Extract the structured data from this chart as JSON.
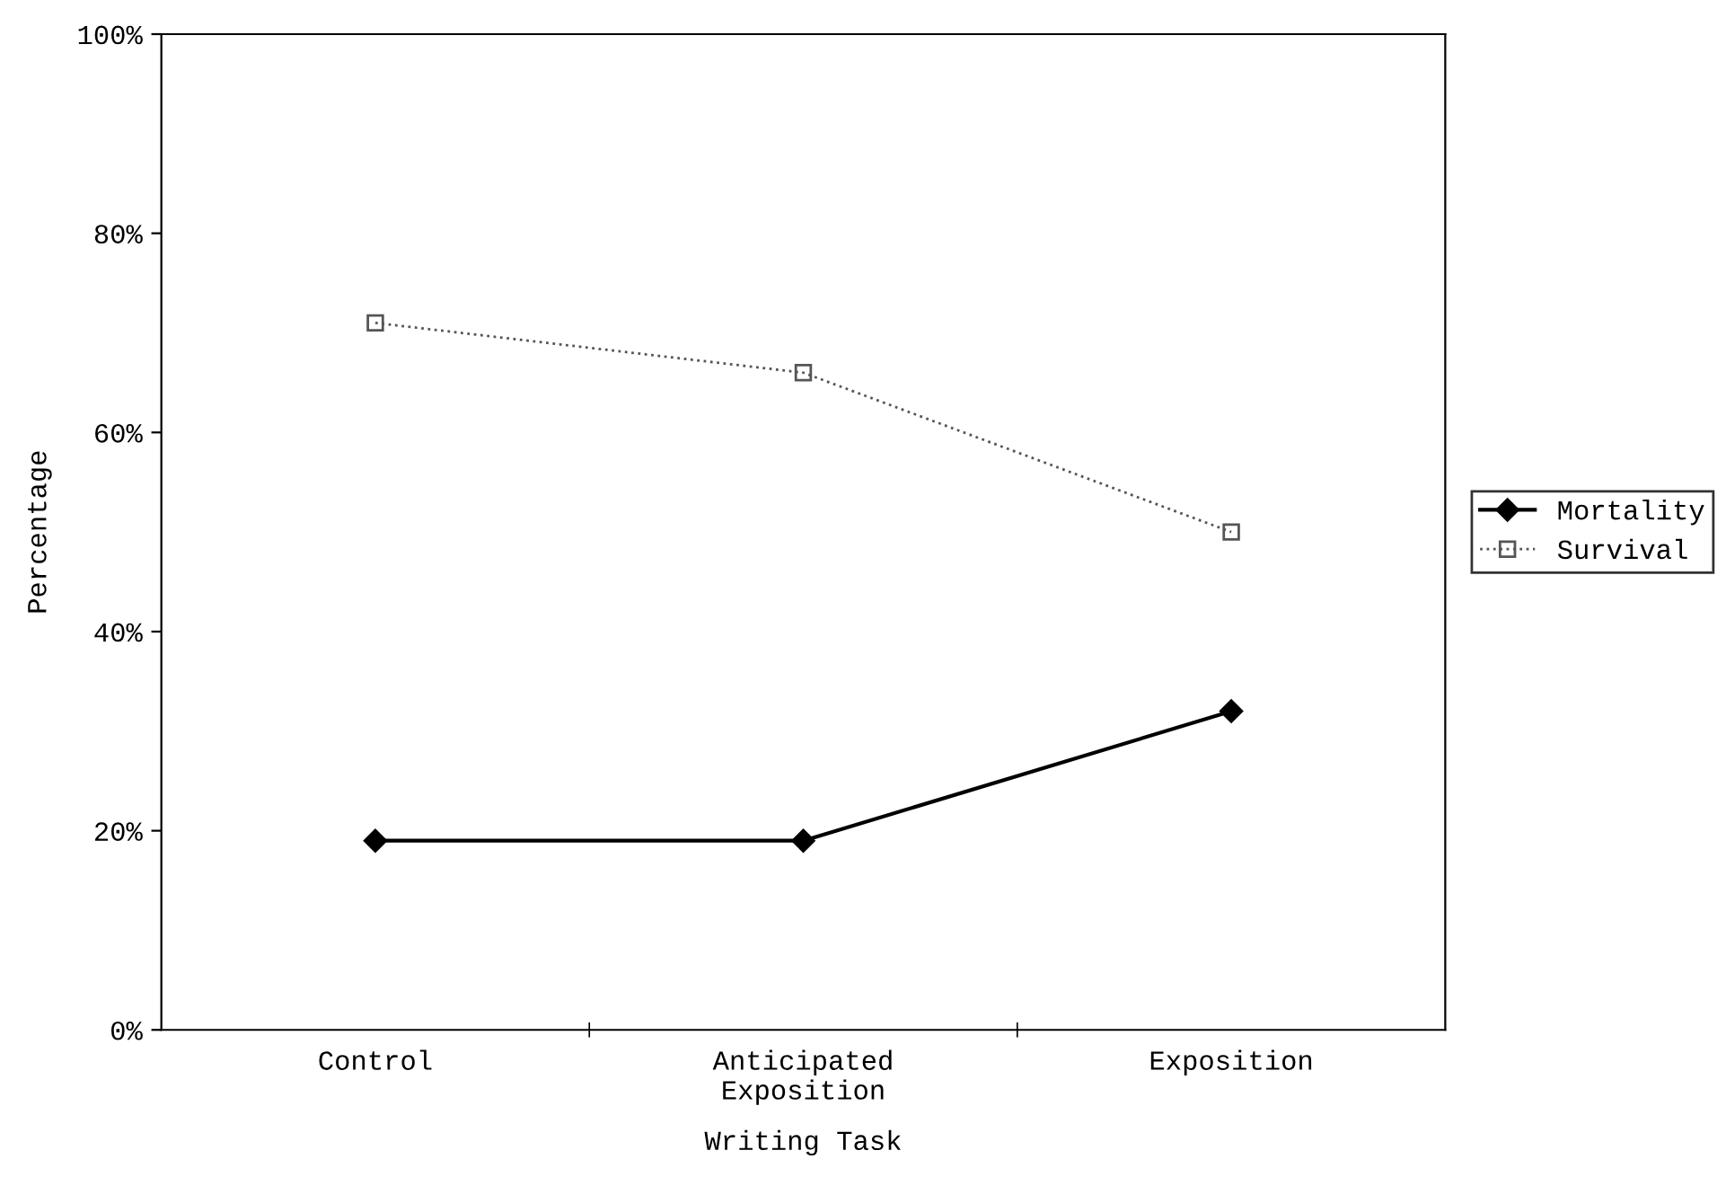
{
  "chart_data": {
    "type": "line",
    "xlabel": "Writing Task",
    "ylabel": "Percentage",
    "categories": [
      "Control",
      "Anticipated\nExposition",
      "Exposition"
    ],
    "series": [
      {
        "name": "Mortality",
        "color": "#000000",
        "values": [
          19,
          19,
          32
        ],
        "marker": "diamond",
        "line_style": "solid"
      },
      {
        "name": "Survival",
        "color": "#555555",
        "values": [
          71,
          66,
          50
        ],
        "marker": "square",
        "line_style": "dotted"
      }
    ],
    "ylim": [
      0,
      100
    ],
    "yticks": [
      {
        "value": 0,
        "label": "0%"
      },
      {
        "value": 20,
        "label": "20%"
      },
      {
        "value": 40,
        "label": "40%"
      },
      {
        "value": 60,
        "label": "60%"
      },
      {
        "value": 80,
        "label": "80%"
      },
      {
        "value": 100,
        "label": "100%"
      }
    ],
    "grid": false,
    "legend": "right"
  }
}
